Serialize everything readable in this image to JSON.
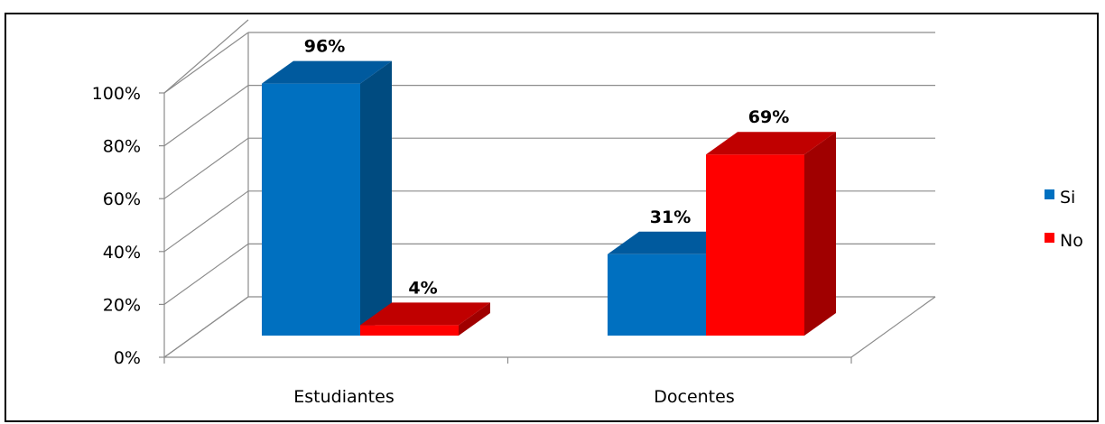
{
  "chart_data": {
    "type": "bar",
    "categories": [
      "Estudiantes",
      "Docentes"
    ],
    "series": [
      {
        "name": "Si",
        "values": [
          96,
          31
        ],
        "color": "#0070C0",
        "side_color": "#004B80",
        "top_color": "#005A9E"
      },
      {
        "name": "No",
        "values": [
          4,
          69
        ],
        "color": "#FF0000",
        "side_color": "#A00000",
        "top_color": "#C00000"
      }
    ],
    "data_labels": [
      [
        "96%",
        "31%"
      ],
      [
        "4%",
        "69%"
      ]
    ],
    "yticks": [
      0,
      20,
      40,
      60,
      80,
      100
    ],
    "ytick_labels": [
      "0%",
      "20%",
      "40%",
      "60%",
      "80%",
      "100%"
    ],
    "ylim": [
      0,
      100
    ],
    "grid": true,
    "legend_position": "right",
    "style": "3d-clustered-column"
  }
}
